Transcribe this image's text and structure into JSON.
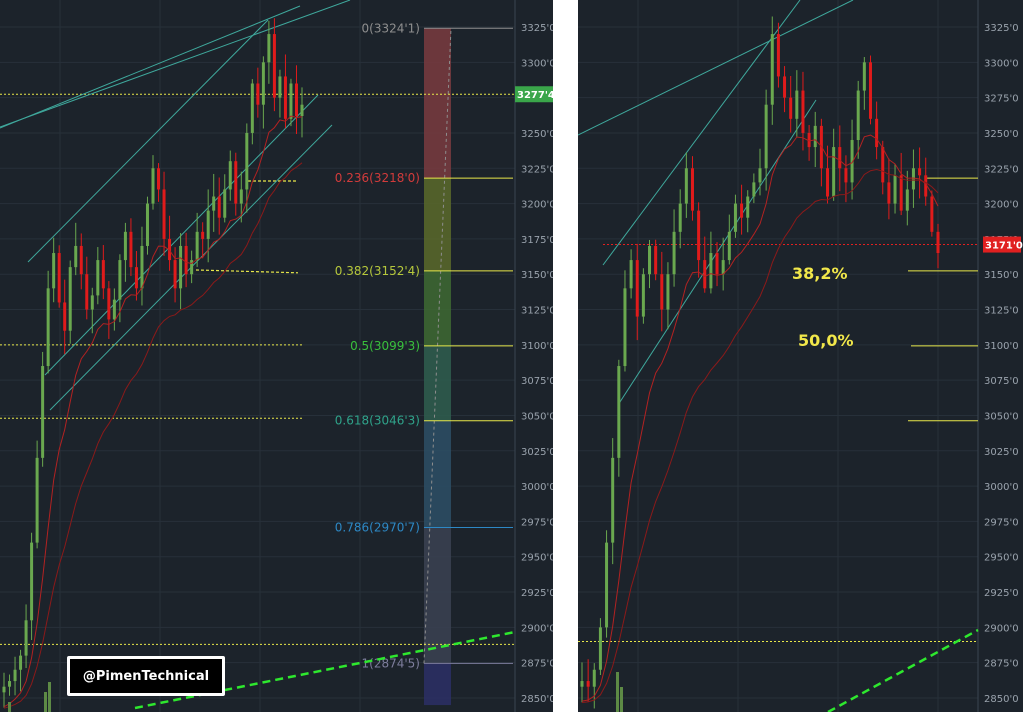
{
  "colors": {
    "background": "#1c232b",
    "grid": "#27303a",
    "bull": "#6aa84f",
    "bear": "#e01b1b",
    "channel": "#3fa89c",
    "ema": "#b22222",
    "dashed_level": "#e8e84a",
    "trend": "#2ee82e",
    "price_tag_left": "#3aa64a",
    "price_tag_right": "#e02020"
  },
  "watermark": "@PimenTechnical",
  "chart_data": [
    {
      "type": "candlestick",
      "panel": "left",
      "y_ticks": [
        "3325'0",
        "3300'0",
        "3275'0",
        "3250'0",
        "3225'0",
        "3200'0",
        "3175'0",
        "3150'0",
        "3125'0",
        "3100'0",
        "3075'0",
        "3050'0",
        "3025'0",
        "3000'0",
        "2975'0",
        "2950'0",
        "2925'0",
        "2900'0",
        "2875'0",
        "2850'0"
      ],
      "ylim": [
        2845,
        3335
      ],
      "current_price": {
        "label": "3277'4",
        "value": 3277.4
      },
      "fibonacci": [
        {
          "label": "0(3324'1)",
          "ratio": 0,
          "price": 3324.1,
          "color": "#8e8e8e"
        },
        {
          "label": "0.236(3218'0)",
          "ratio": 0.236,
          "price": 3218.0,
          "color": "#d23b3b"
        },
        {
          "label": "0.382(3152'4)",
          "ratio": 0.382,
          "price": 3152.4,
          "color": "#b6c83c"
        },
        {
          "label": "0.5(3099'3)",
          "ratio": 0.5,
          "price": 3099.3,
          "color": "#39c03c"
        },
        {
          "label": "0.618(3046'3)",
          "ratio": 0.618,
          "price": 3046.3,
          "color": "#2fa38a"
        },
        {
          "label": "0.786(2970'7)",
          "ratio": 0.786,
          "price": 2970.7,
          "color": "#2d88c5"
        },
        {
          "label": "1(2874'5)",
          "ratio": 1,
          "price": 2874.5,
          "color": "#7d7d9c"
        }
      ],
      "dashed_levels": [
        3277.4,
        3100,
        3048,
        2888
      ],
      "close_path": [
        2858,
        2862,
        2870,
        2880,
        2905,
        2960,
        3020,
        3085,
        3140,
        3165,
        3130,
        3110,
        3155,
        3170,
        3150,
        3125,
        3135,
        3160,
        3140,
        3118,
        3132,
        3160,
        3180,
        3155,
        3140,
        3170,
        3200,
        3225,
        3210,
        3175,
        3160,
        3140,
        3170,
        3150,
        3160,
        3180,
        3175,
        3195,
        3205,
        3190,
        3210,
        3230,
        3200,
        3210,
        3250,
        3285,
        3270,
        3300,
        3320,
        3275,
        3290,
        3260,
        3285,
        3262,
        3270
      ]
    },
    {
      "type": "candlestick",
      "panel": "right",
      "y_ticks": [
        "3325'0",
        "3300'0",
        "3275'0",
        "3250'0",
        "3225'0",
        "3200'0",
        "3175'0",
        "3150'0",
        "3125'0",
        "3100'0",
        "3075'0",
        "3050'0",
        "3025'0",
        "3000'0",
        "2975'0",
        "2950'0",
        "2925'0",
        "2900'0",
        "2875'0",
        "2850'0"
      ],
      "ylim": [
        2845,
        3335
      ],
      "current_price": {
        "label": "3171'0",
        "value": 3171.0
      },
      "annotations": [
        {
          "text": "38,2%",
          "price": 3152.4
        },
        {
          "text": "50,0%",
          "price": 3099.3
        }
      ],
      "levels": [
        3218.0,
        3152.4,
        3099.3,
        3046.3
      ],
      "dashed_levels": [
        2890
      ],
      "close_path": [
        2862,
        2858,
        2870,
        2900,
        2960,
        3020,
        3085,
        3140,
        3160,
        3120,
        3150,
        3170,
        3150,
        3125,
        3150,
        3180,
        3200,
        3225,
        3195,
        3160,
        3140,
        3165,
        3150,
        3160,
        3180,
        3200,
        3190,
        3205,
        3215,
        3225,
        3270,
        3320,
        3290,
        3275,
        3260,
        3280,
        3250,
        3240,
        3255,
        3225,
        3205,
        3240,
        3225,
        3215,
        3245,
        3280,
        3300,
        3260,
        3240,
        3215,
        3200,
        3220,
        3195,
        3210,
        3225,
        3220,
        3205,
        3180,
        3165
      ]
    }
  ]
}
